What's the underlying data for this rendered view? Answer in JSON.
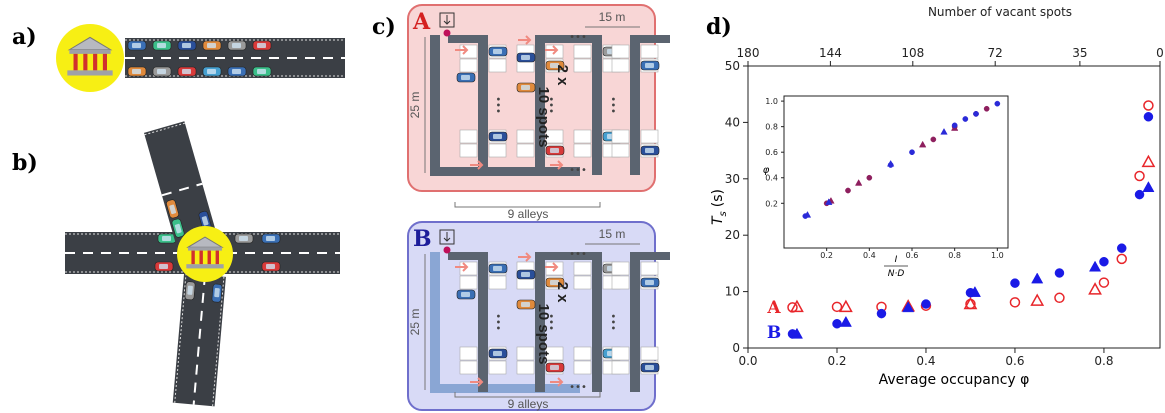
{
  "panels": {
    "a": "a)",
    "b": "b)",
    "c": "c)",
    "d": "d)"
  },
  "diagram": {
    "lots": [
      {
        "name": "A",
        "width": "15 m",
        "height": "25 m",
        "multiplier": "2 x",
        "spots": "10 spots",
        "alleys": "9 alleys",
        "ellipsis": "•••"
      },
      {
        "name": "B",
        "width": "15 m",
        "height": "25 m",
        "multiplier": "2 x",
        "spots": "10 spots",
        "alleys": "9 alleys",
        "ellipsis": "•••"
      }
    ]
  },
  "chart_data": [
    {
      "type": "scatter",
      "x_label": "Average occupancy φ",
      "y_label": {
        "symbol": "T",
        "subscript": "s",
        "unit": "(s)"
      },
      "x2_label": "Number of vacant spots",
      "xlim": [
        0,
        0.926
      ],
      "ylim": [
        0,
        50
      ],
      "x2lim": [
        180,
        0
      ],
      "xticks": [
        {
          "value": 0,
          "label": "0.0"
        },
        0.2,
        0.4,
        0.6,
        0.8
      ],
      "yticks": [
        0,
        10,
        20,
        30,
        40,
        50
      ],
      "x2ticks": [
        180,
        144,
        108,
        72,
        35,
        0
      ],
      "annotations": [
        {
          "text": "A",
          "color": "#e8262b"
        },
        {
          "text": "B",
          "color": "#1a1ae6"
        }
      ],
      "series": [
        {
          "color": "#e8262b",
          "marker": "circle",
          "filled": false,
          "x": [
            0.1,
            0.2,
            0.3,
            0.4,
            0.5,
            0.6,
            0.7,
            0.8,
            0.84,
            0.88,
            0.9
          ],
          "values": [
            7.2,
            7.3,
            7.3,
            7.5,
            7.8,
            8.1,
            8.9,
            11.6,
            15.8,
            30.5,
            43.0
          ]
        },
        {
          "color": "#e8262b",
          "marker": "triangle",
          "filled": false,
          "x": [
            0.11,
            0.22,
            0.36,
            0.5,
            0.65,
            0.78,
            0.9
          ],
          "values": [
            7.3,
            7.3,
            7.4,
            7.8,
            8.4,
            10.4,
            33.0
          ]
        },
        {
          "color": "#1a1ae6",
          "marker": "circle",
          "filled": true,
          "x": [
            0.1,
            0.2,
            0.3,
            0.4,
            0.5,
            0.6,
            0.7,
            0.8,
            0.84,
            0.88,
            0.9
          ],
          "values": [
            2.5,
            4.3,
            6.1,
            7.8,
            9.8,
            11.5,
            13.3,
            15.3,
            17.7,
            27.2,
            41.0
          ]
        },
        {
          "color": "#1a1ae6",
          "marker": "triangle",
          "filled": true,
          "x": [
            0.11,
            0.22,
            0.36,
            0.51,
            0.65,
            0.78,
            0.9
          ],
          "values": [
            2.5,
            4.6,
            7.2,
            9.9,
            12.3,
            14.4,
            28.5
          ]
        }
      ]
    },
    {
      "type": "scatter",
      "x_label": {
        "numerator": "I",
        "denominator": "N·D"
      },
      "y_label": "φ",
      "xlim": [
        0,
        1.05
      ],
      "ylim": [
        -0.15,
        1.04
      ],
      "xticks": [
        0.2,
        0.4,
        0.6,
        0.8,
        {
          "value": 1,
          "label": "1.0"
        }
      ],
      "yticks": [
        0.2,
        0.4,
        0.6,
        0.8,
        {
          "value": 1,
          "label": "1.0"
        }
      ],
      "series": [
        {
          "color": "#8e1f5e",
          "marker": "circle",
          "filled": true,
          "x": [
            0.2,
            0.3,
            0.4,
            0.7,
            0.8,
            0.9,
            0.95
          ],
          "values": [
            0.2,
            0.3,
            0.4,
            0.7,
            0.8,
            0.9,
            0.94
          ]
        },
        {
          "color": "#8e1f5e",
          "marker": "triangle",
          "filled": true,
          "x": [
            0.22,
            0.35,
            0.65,
            0.8
          ],
          "values": [
            0.22,
            0.36,
            0.66,
            0.79
          ]
        },
        {
          "color": "#2a2ad8",
          "marker": "circle",
          "filled": true,
          "x": [
            0.1,
            0.5,
            0.6,
            0.8,
            0.85,
            0.9,
            1.0
          ],
          "values": [
            0.1,
            0.5,
            0.6,
            0.81,
            0.86,
            0.9,
            0.98
          ]
        },
        {
          "color": "#2a2ad8",
          "marker": "triangle",
          "filled": true,
          "x": [
            0.11,
            0.21,
            0.5,
            0.75
          ],
          "values": [
            0.11,
            0.21,
            0.51,
            0.76
          ]
        }
      ]
    }
  ]
}
